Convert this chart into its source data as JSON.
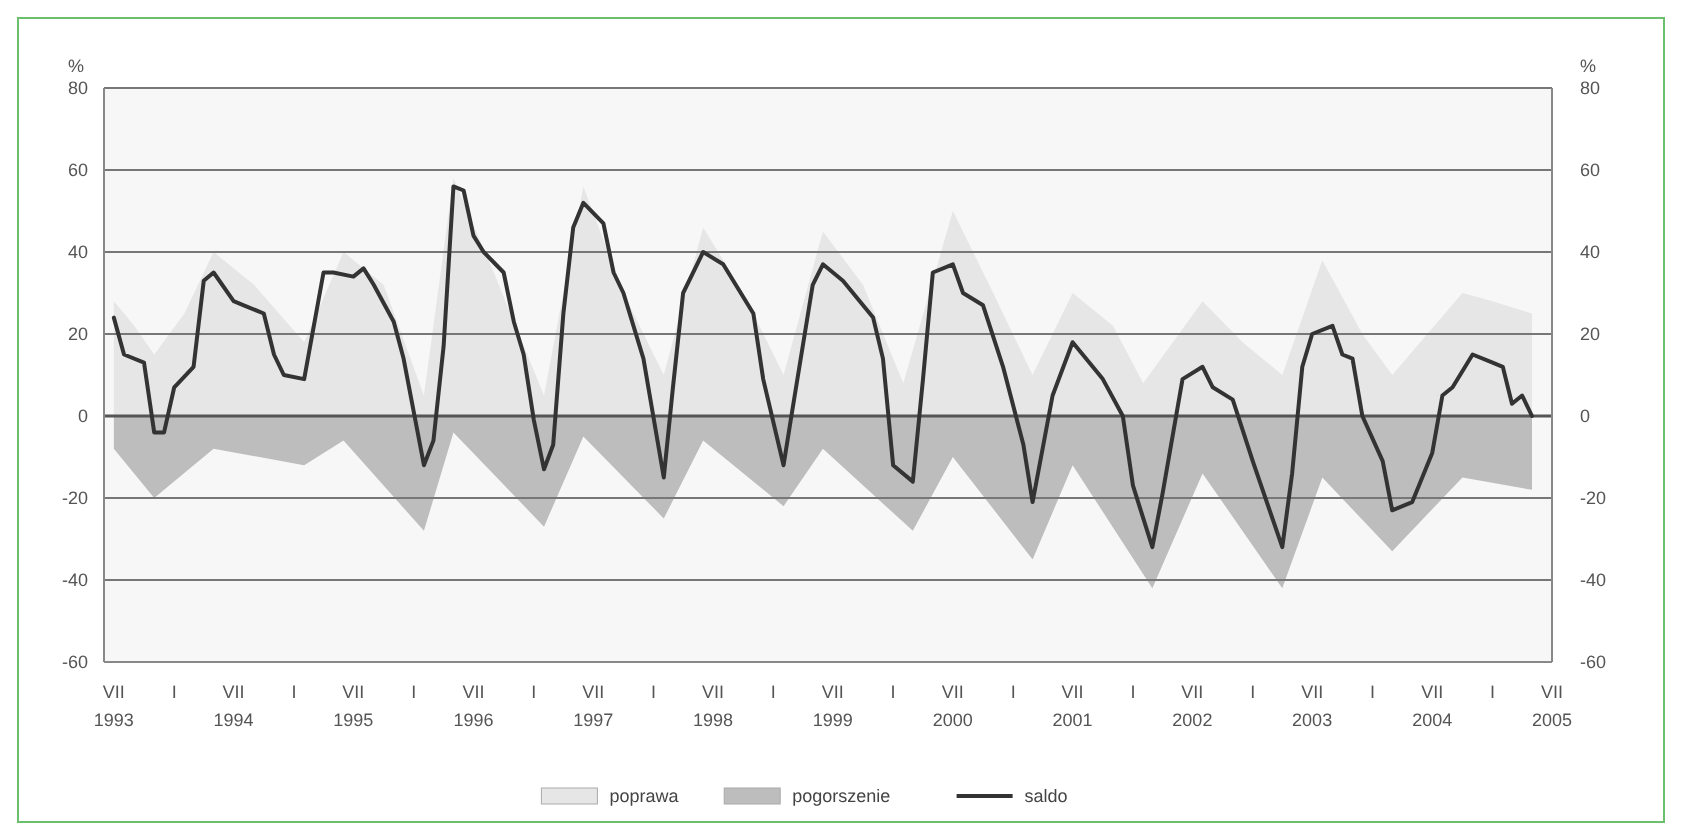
{
  "chart_data": {
    "type": "line",
    "ylabel": "%",
    "y2label": "%",
    "xlim": [
      "1993-06",
      "2005-07"
    ],
    "xticks": [
      {
        "value": "1993-07",
        "label": "VII\n1993"
      },
      {
        "value": "1994-01",
        "label": "I"
      },
      {
        "value": "1994-07",
        "label": "VII\n1994"
      },
      {
        "value": "1995-01",
        "label": "I"
      },
      {
        "value": "1995-07",
        "label": "VII\n1995"
      },
      {
        "value": "1996-01",
        "label": "I"
      },
      {
        "value": "1996-07",
        "label": "VII\n1996"
      },
      {
        "value": "1997-01",
        "label": "I"
      },
      {
        "value": "1997-07",
        "label": "VII\n1997"
      },
      {
        "value": "1998-01",
        "label": "I"
      },
      {
        "value": "1998-07",
        "label": "VII\n1998"
      },
      {
        "value": "1999-01",
        "label": "I"
      },
      {
        "value": "1999-07",
        "label": "VII\n1999"
      },
      {
        "value": "2000-01",
        "label": "I"
      },
      {
        "value": "2000-07",
        "label": "VII\n2000"
      },
      {
        "value": "2001-01",
        "label": "I"
      },
      {
        "value": "2001-07",
        "label": "VII\n2001"
      },
      {
        "value": "2002-01",
        "label": "I"
      },
      {
        "value": "2002-07",
        "label": "VII\n2002"
      },
      {
        "value": "2003-01",
        "label": "I"
      },
      {
        "value": "2003-07",
        "label": "VII\n2003"
      },
      {
        "value": "2004-01",
        "label": "I"
      },
      {
        "value": "2004-07",
        "label": "VII\n2004"
      },
      {
        "value": "2005-01",
        "label": "I"
      },
      {
        "value": "2005-07",
        "label": "VII\n2005"
      }
    ],
    "ylim": [
      -60,
      80
    ],
    "yticks": [
      -60,
      -40,
      -20,
      0,
      20,
      40,
      60,
      80
    ],
    "y2lim": [
      -60,
      80
    ],
    "y2ticks": [
      -60,
      -40,
      -20,
      0,
      20,
      40,
      60,
      80
    ],
    "grid": "y",
    "legend": "bottom",
    "series": [
      {
        "name": "poprawa",
        "type": "area",
        "color": "#e6e6e6",
        "x": [
          "1993-07",
          "1993-09",
          "1993-11",
          "1994-02",
          "1994-05",
          "1994-09",
          "1995-02",
          "1995-06",
          "1995-10",
          "1996-02",
          "1996-05",
          "1996-09",
          "1997-02",
          "1997-06",
          "1997-10",
          "1998-02",
          "1998-06",
          "1998-10",
          "1999-02",
          "1999-06",
          "1999-10",
          "2000-02",
          "2000-07",
          "2000-11",
          "2001-03",
          "2001-07",
          "2001-11",
          "2002-02",
          "2002-08",
          "2002-12",
          "2003-04",
          "2003-08",
          "2003-12",
          "2004-03",
          "2004-10",
          "2005-01",
          "2005-05"
        ],
        "values": [
          28,
          22,
          15,
          25,
          40,
          32,
          18,
          40,
          32,
          5,
          58,
          35,
          5,
          56,
          30,
          10,
          46,
          30,
          10,
          45,
          32,
          8,
          50,
          30,
          10,
          30,
          22,
          8,
          28,
          18,
          10,
          38,
          20,
          10,
          30,
          28,
          25
        ]
      },
      {
        "name": "pogorszenie",
        "type": "area",
        "color": "#bdbdbd",
        "x": [
          "1993-07",
          "1993-11",
          "1994-05",
          "1995-02",
          "1995-06",
          "1996-02",
          "1996-05",
          "1997-02",
          "1997-06",
          "1998-02",
          "1998-06",
          "1999-02",
          "1999-06",
          "2000-03",
          "2000-07",
          "2001-03",
          "2001-07",
          "2002-03",
          "2002-08",
          "2003-04",
          "2003-08",
          "2004-03",
          "2004-10",
          "2005-05"
        ],
        "values": [
          -8,
          -20,
          -8,
          -12,
          -6,
          -28,
          -4,
          -27,
          -5,
          -25,
          -6,
          -22,
          -8,
          -28,
          -10,
          -35,
          -12,
          -42,
          -14,
          -42,
          -15,
          -33,
          -15,
          -18
        ]
      },
      {
        "name": "saldo",
        "color": "#333333",
        "x": [
          "1993-07",
          "1993-08",
          "1993-10",
          "1993-11",
          "1993-12",
          "1994-01",
          "1994-03",
          "1994-04",
          "1994-05",
          "1994-07",
          "1994-08",
          "1994-10",
          "1994-11",
          "1994-12",
          "1995-02",
          "1995-04",
          "1995-05",
          "1995-07",
          "1995-08",
          "1995-09",
          "1995-11",
          "1995-12",
          "1996-02",
          "1996-03",
          "1996-04",
          "1996-05",
          "1996-06",
          "1996-07",
          "1996-08",
          "1996-10",
          "1996-11",
          "1996-12",
          "1997-01",
          "1997-02",
          "1997-03",
          "1997-04",
          "1997-05",
          "1997-06",
          "1997-08",
          "1997-09",
          "1997-10",
          "1997-12",
          "1998-02",
          "1998-03",
          "1998-04",
          "1998-06",
          "1998-08",
          "1998-11",
          "1998-12",
          "1999-02",
          "1999-03",
          "1999-05",
          "1999-06",
          "1999-08",
          "1999-11",
          "1999-12",
          "2000-01",
          "2000-03",
          "2000-04",
          "2000-05",
          "2000-07",
          "2000-08",
          "2000-10",
          "2000-12",
          "2001-02",
          "2001-03",
          "2001-05",
          "2001-07",
          "2001-10",
          "2001-12",
          "2002-01",
          "2002-03",
          "2002-04",
          "2002-06",
          "2002-08",
          "2002-09",
          "2002-11",
          "2003-01",
          "2003-04",
          "2003-05",
          "2003-06",
          "2003-07",
          "2003-09",
          "2003-10",
          "2003-11",
          "2003-12",
          "2004-02",
          "2004-03",
          "2004-05",
          "2004-07",
          "2004-08",
          "2004-09",
          "2004-11",
          "2005-01",
          "2005-02",
          "2005-03",
          "2005-04",
          "2005-05"
        ],
        "values": [
          24,
          15,
          13,
          -4,
          -4,
          7,
          12,
          33,
          35,
          28,
          27,
          25,
          15,
          10,
          9,
          35,
          35,
          34,
          36,
          32,
          23,
          14,
          -12,
          -6,
          17,
          56,
          55,
          44,
          40,
          35,
          23,
          15,
          -1,
          -13,
          -7,
          25,
          46,
          52,
          47,
          35,
          30,
          14,
          -15,
          7,
          30,
          40,
          37,
          25,
          9,
          -12,
          2,
          32,
          37,
          33,
          24,
          14,
          -12,
          -16,
          9,
          35,
          37,
          30,
          27,
          12,
          -7,
          -21,
          5,
          18,
          9,
          0,
          -17,
          -32,
          -19,
          9,
          12,
          7,
          4,
          -11,
          -32,
          -14,
          12,
          20,
          22,
          15,
          14,
          0,
          -11,
          -23,
          -21,
          -9,
          5,
          7,
          15,
          13,
          12,
          3,
          5,
          0
        ]
      }
    ]
  }
}
